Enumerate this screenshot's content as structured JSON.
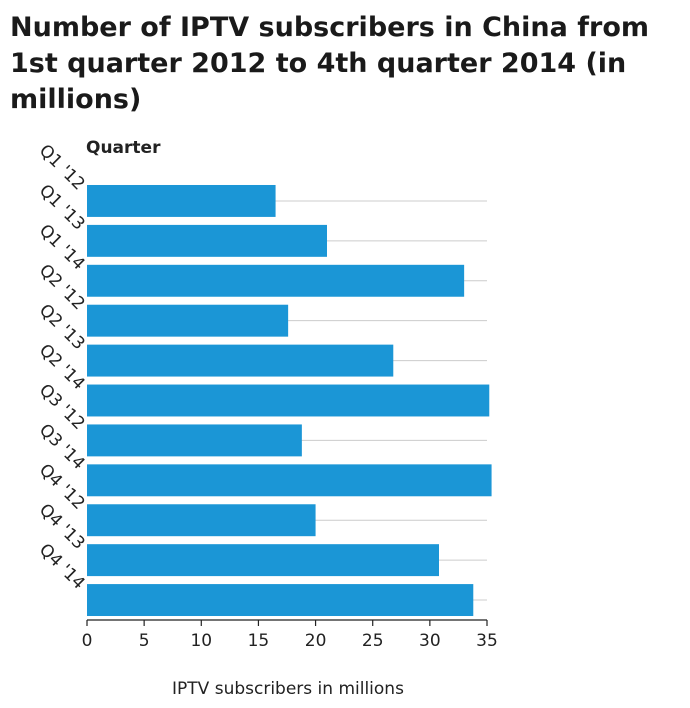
{
  "chart_data": {
    "type": "bar",
    "orientation": "horizontal",
    "title": "Number of IPTV subscribers in China from 1st quarter 2012 to 4th quarter 2014 (in millions)",
    "xlabel": "IPTV subscribers in millions",
    "ylabel": "Quarter",
    "categories": [
      "Q1 '12",
      "Q1 '13",
      "Q1 '14",
      "Q2 '12",
      "Q2 '13",
      "Q2 '14",
      "Q3 '12",
      "Q3 '14",
      "Q4 '12",
      "Q4 '13",
      "Q4 '14"
    ],
    "values": [
      16.5,
      21,
      33,
      17.6,
      26.8,
      35.2,
      18.8,
      35.4,
      20,
      30.8,
      33.8
    ],
    "xlim": [
      0,
      35
    ],
    "xticks": [
      0,
      5,
      10,
      15,
      20,
      25,
      30,
      35
    ],
    "grid": true,
    "bar_color": "#1b96d6",
    "grid_color": "#cccccc"
  }
}
